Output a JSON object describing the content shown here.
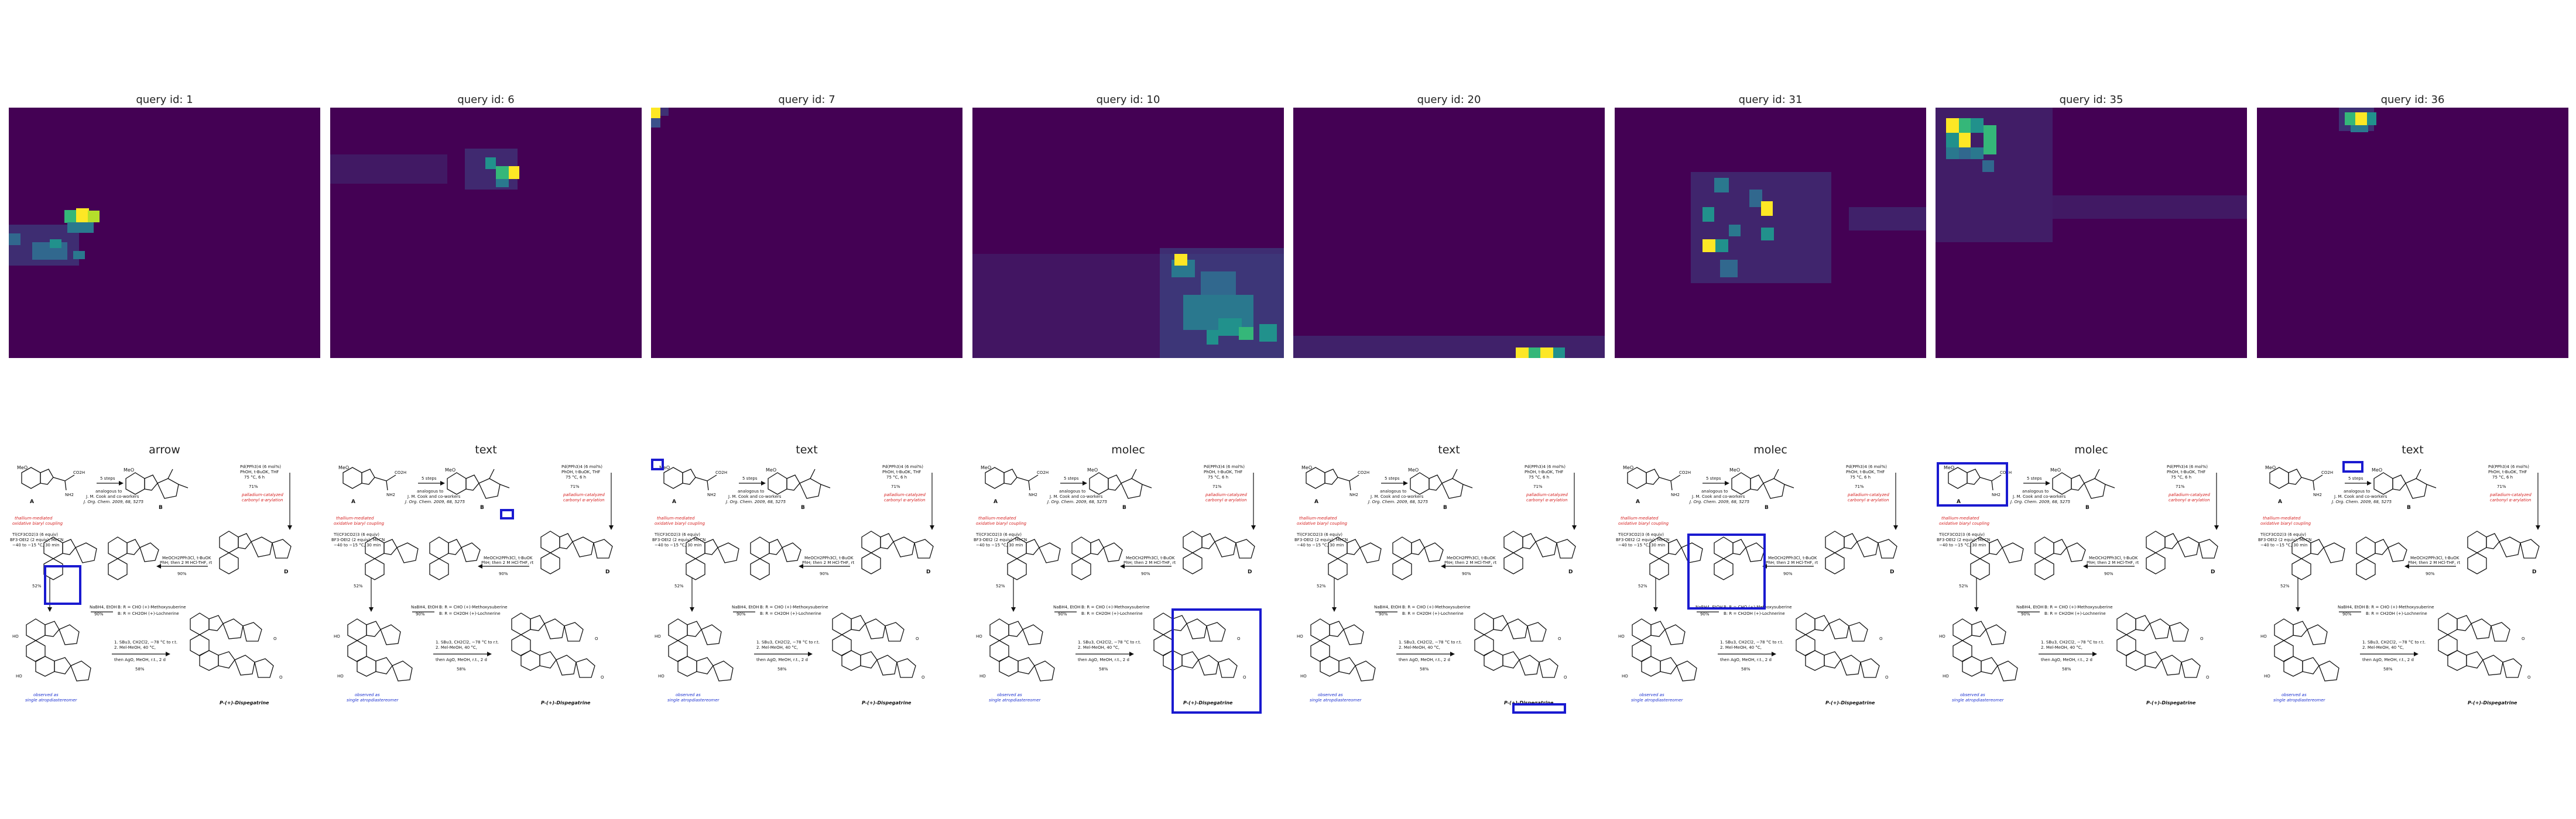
{
  "panels": [
    {
      "query_title": "query id: 1",
      "pred_label": "arrow"
    },
    {
      "query_title": "query id: 6",
      "pred_label": "text"
    },
    {
      "query_title": "query id: 7",
      "pred_label": "text"
    },
    {
      "query_title": "query id: 10",
      "pred_label": "molec"
    },
    {
      "query_title": "query id: 20",
      "pred_label": "text"
    },
    {
      "query_title": "query id: 31",
      "pred_label": "molec"
    },
    {
      "query_title": "query id: 35",
      "pred_label": "molec"
    },
    {
      "query_title": "query id: 36",
      "pred_label": "text"
    }
  ],
  "colors": {
    "heatmap_background": "#440154",
    "heatmap_low": "#31688e",
    "heatmap_mid": "#21918c",
    "heatmap_high": "#35b779",
    "heatmap_peak": "#fde725",
    "highlight_box": "#1a1ad0",
    "annotation_red": "#d62020",
    "annotation_blue": "#1a2fd0"
  },
  "scheme": {
    "label_A": "A",
    "label_B": "B",
    "label_C": "C",
    "label_D": "D",
    "steps_arrow": "5 steps",
    "analogous_1": "analogous to",
    "analogous_2": "J. M. Cook and co-workers",
    "analogous_3": "J. Org. Chem. 2009, 68, 5275",
    "cond_pd_1": "Pd(PPh3)4 (6 mol%)",
    "cond_pd_2": "PhOH, t-BuOK, THF",
    "cond_pd_3": "75 °C, 6 h",
    "yield_71": "71%",
    "pd_note_1": "palladium-catalyzed",
    "pd_note_2": "carbonyl α-arylation",
    "tl_note_1": "thallium-mediated",
    "tl_note_2": "oxidative biaryl coupling",
    "tfa_1": "Tl(CF3CO2)3 (6 equiv)",
    "tfa_2": "BF3·OEt2 (2 equiv), MeCN",
    "tfa_3": "−40 to −15 °C, 30 min",
    "meoch_1": "MeOCH2PPh3Cl, t-BuOK",
    "meoch_2": "PhH; then 2 M HCl-THF, rt",
    "yield_90": "90%",
    "yield_52": "52%",
    "nabh4": "NaBH4, EtOH",
    "yield_90b": "90%",
    "prod_1a": "B: R = CHO  (+)-Methoxysuberine",
    "prod_1b": "B: R = CH2OH  (+)-Lochnerine",
    "dep_1": "1. SBu3, CH2Cl2, −78 °C to r.t.",
    "dep_2": "2. Mel-MeOH, 40 °C,",
    "dep_3": "then AgO, MeOH, r.t., 2 d",
    "yield_58": "58%",
    "obs_1": "observed as",
    "obs_2": "single atropdiastereomer",
    "final": "P-(+)-Dispegatrine"
  }
}
